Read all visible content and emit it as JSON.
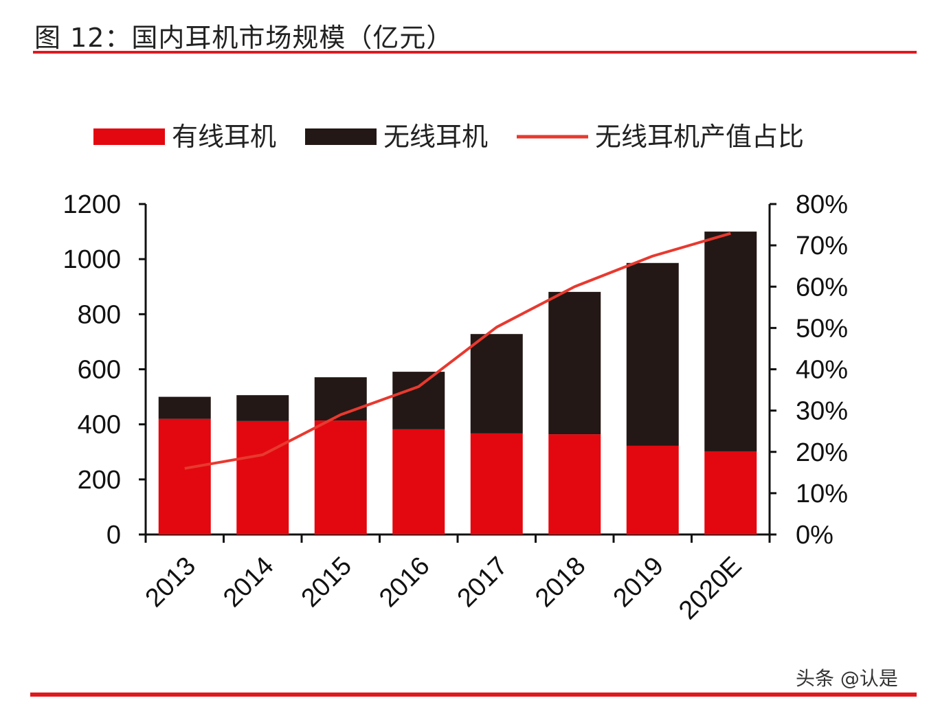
{
  "title": "图 12：国内耳机市场规模（亿元）",
  "watermark": "头条 @认是",
  "chart_data": {
    "type": "bar",
    "stacked": true,
    "title": "图 12：国内耳机市场规模（亿元）",
    "categories": [
      "2013",
      "2014",
      "2015",
      "2016",
      "2017",
      "2018",
      "2019",
      "2020E"
    ],
    "series": [
      {
        "name": "有线耳机",
        "type": "bar",
        "axis": "left",
        "color": "#e3080f",
        "values": [
          420,
          412,
          414,
          382,
          367,
          364,
          322,
          302
        ]
      },
      {
        "name": "无线耳机",
        "type": "bar",
        "axis": "left",
        "color": "#231815",
        "values": [
          80,
          94,
          157,
          209,
          361,
          517,
          664,
          798
        ]
      },
      {
        "name": "无线耳机产值占比",
        "type": "line",
        "axis": "right",
        "color": "#e8392f",
        "values": [
          16,
          19.3,
          29,
          35.8,
          50.2,
          60,
          67.4,
          72.9
        ]
      }
    ],
    "ylim": [
      0,
      1200
    ],
    "yticks": [
      "0",
      "200",
      "400",
      "600",
      "800",
      "1000",
      "1200"
    ],
    "y2lim": [
      0,
      80
    ],
    "y2ticks": [
      "0%",
      "10%",
      "20%",
      "30%",
      "40%",
      "50%",
      "60%",
      "70%",
      "80%"
    ],
    "legend": "top",
    "grid": false
  }
}
